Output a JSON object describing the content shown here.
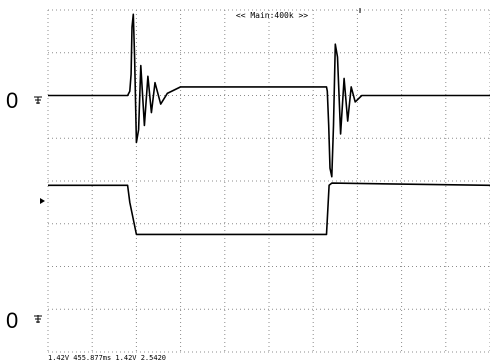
{
  "header": {
    "timebase_label": "<< Main:400k >>"
  },
  "channels": [
    {
      "ground_label": "0"
    },
    {
      "ground_label": "0"
    }
  ],
  "footer": {
    "readout": "1.42V 455.877ms 1.42V 2.5420"
  },
  "chart_data": {
    "type": "line",
    "title": "",
    "xlabel": "",
    "ylabel": "",
    "grid": true,
    "grid_divisions": {
      "x": 10,
      "y": 8
    },
    "xlim": [
      0,
      10
    ],
    "ylim": [
      0,
      8
    ],
    "series": [
      {
        "name": "",
        "description_free": true,
        "x": [
          0,
          1.8,
          1.85,
          1.88,
          1.9,
          1.93,
          1.96,
          2.0,
          2.05,
          2.1,
          2.18,
          2.26,
          2.34,
          2.42,
          2.55,
          2.7,
          3.0,
          6.3,
          6.32,
          6.35,
          6.38,
          6.42,
          6.46,
          6.5,
          6.55,
          6.62,
          6.7,
          6.78,
          6.86,
          6.95,
          7.1,
          7.3,
          10
        ],
        "y": [
          6.0,
          6.0,
          6.1,
          6.5,
          7.6,
          7.9,
          6.9,
          4.9,
          5.2,
          6.7,
          5.3,
          6.45,
          5.6,
          6.3,
          5.8,
          6.05,
          6.2,
          6.2,
          6.1,
          5.3,
          4.3,
          4.1,
          5.3,
          7.2,
          6.9,
          5.1,
          6.4,
          5.4,
          6.2,
          5.85,
          6.0,
          6.0,
          6.0
        ]
      },
      {
        "name": "",
        "x": [
          0,
          1.8,
          1.85,
          2.0,
          6.3,
          6.36,
          6.42,
          10
        ],
        "y": [
          3.9,
          3.9,
          3.5,
          2.75,
          2.75,
          3.9,
          3.95,
          3.9
        ]
      }
    ]
  }
}
